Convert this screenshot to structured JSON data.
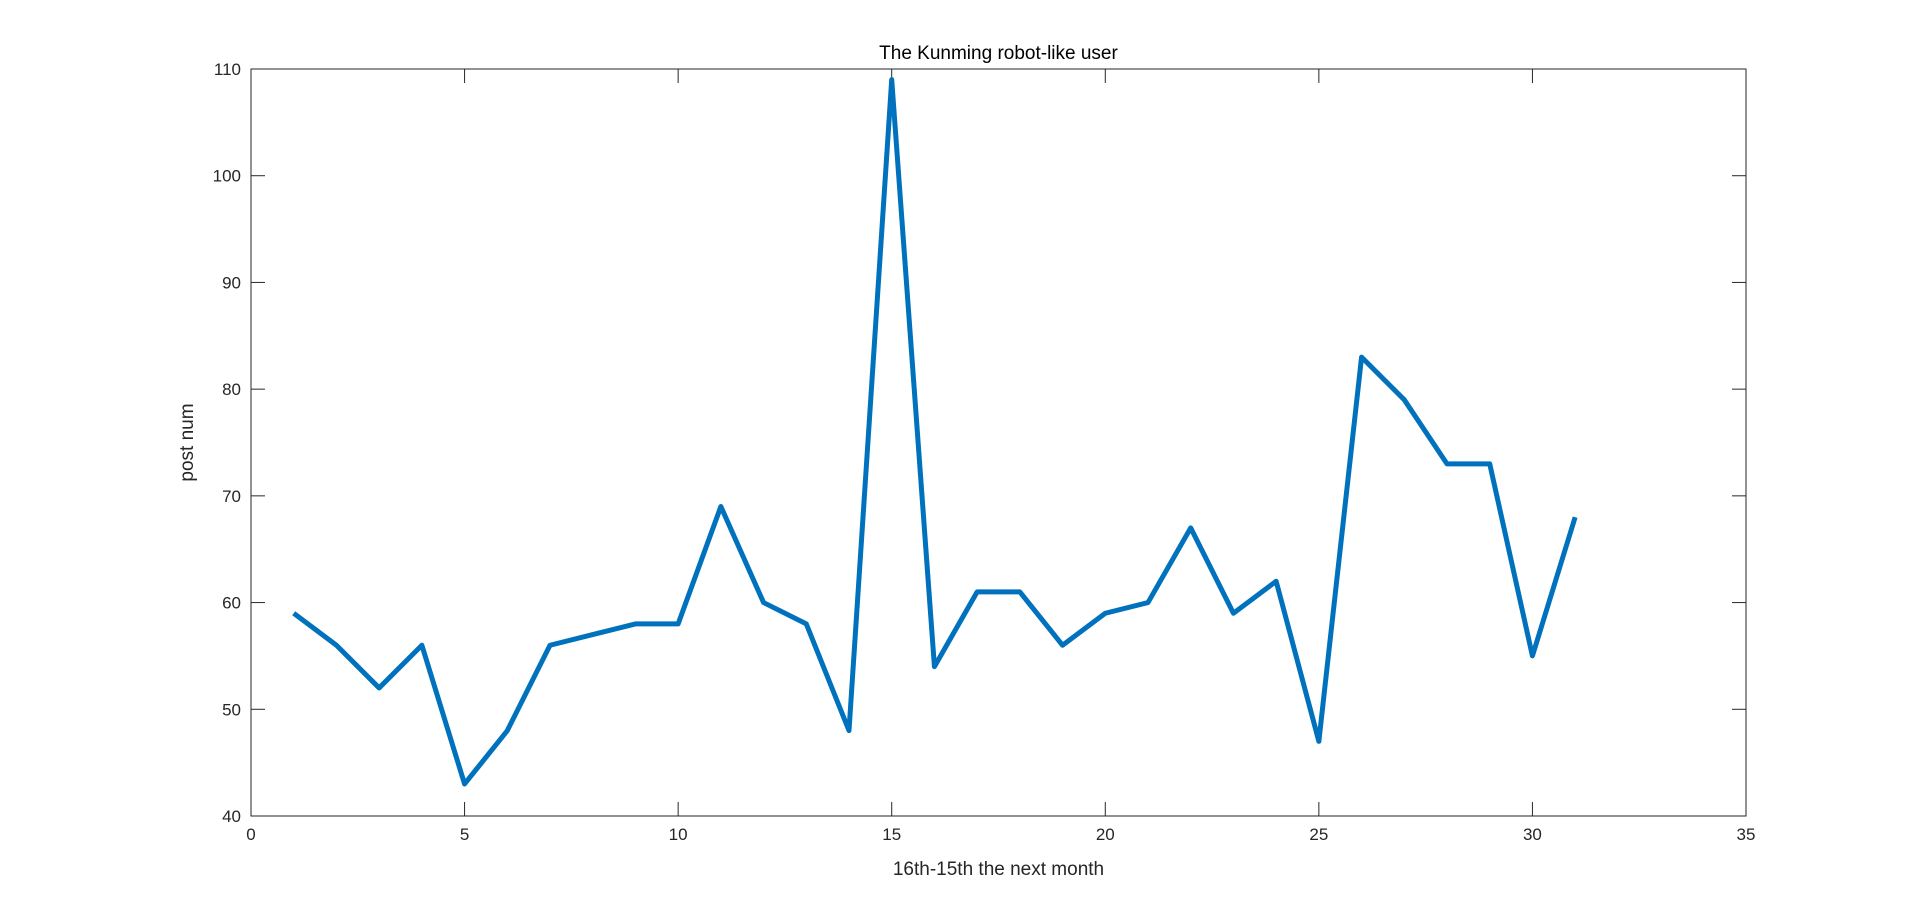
{
  "chart_data": {
    "type": "line",
    "title": "The Kunming robot-like user",
    "xlabel": "16th-15th the next month",
    "ylabel": "post num",
    "xlim": [
      0,
      35
    ],
    "ylim": [
      40,
      110
    ],
    "xticks": [
      0,
      5,
      10,
      15,
      20,
      25,
      30,
      35
    ],
    "yticks": [
      40,
      50,
      60,
      70,
      80,
      90,
      100,
      110
    ],
    "grid": false,
    "series": [
      {
        "color": "#0072BD",
        "x": [
          1,
          2,
          3,
          4,
          5,
          6,
          7,
          8,
          9,
          10,
          11,
          12,
          13,
          14,
          15,
          16,
          17,
          18,
          19,
          20,
          21,
          22,
          23,
          24,
          25,
          26,
          27,
          28,
          29,
          30,
          31
        ],
        "values": [
          59,
          56,
          52,
          56,
          43,
          48,
          56,
          57,
          58,
          58,
          69,
          60,
          58,
          48,
          109,
          54,
          61,
          61,
          56,
          59,
          60,
          67,
          59,
          62,
          47,
          83,
          79,
          73,
          73,
          55,
          68
        ]
      }
    ]
  }
}
